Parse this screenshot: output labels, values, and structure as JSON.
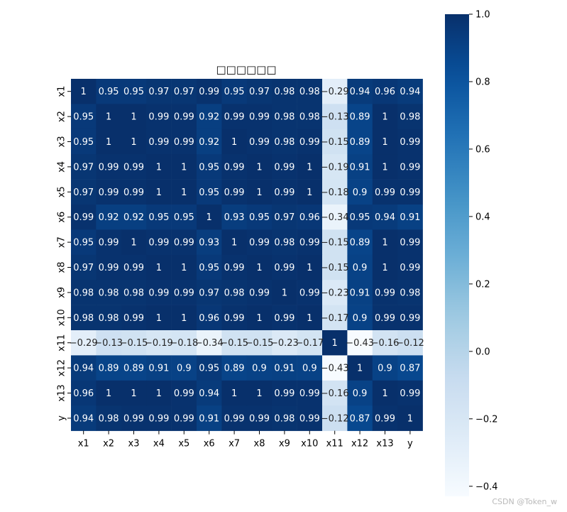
{
  "chart_data": {
    "type": "heatmap",
    "title": "□□□□□□",
    "colormap": "Blues",
    "vmin": -0.43,
    "vmax": 1.0,
    "row_labels": [
      "x1",
      "x2",
      "x3",
      "x4",
      "x5",
      "x6",
      "x7",
      "x8",
      "x9",
      "x10",
      "x11",
      "x12",
      "x13",
      "y"
    ],
    "col_labels": [
      "x1",
      "x2",
      "x3",
      "x4",
      "x5",
      "x6",
      "x7",
      "x8",
      "x9",
      "x10",
      "x11",
      "x12",
      "x13",
      "y"
    ],
    "values": [
      [
        1,
        0.95,
        0.95,
        0.97,
        0.97,
        0.99,
        0.95,
        0.97,
        0.98,
        0.98,
        -0.29,
        0.94,
        0.96,
        0.94
      ],
      [
        0.95,
        1,
        1,
        0.99,
        0.99,
        0.92,
        0.99,
        0.99,
        0.98,
        0.98,
        -0.13,
        0.89,
        1,
        0.98
      ],
      [
        0.95,
        1,
        1,
        0.99,
        0.99,
        0.92,
        1,
        0.99,
        0.98,
        0.99,
        -0.15,
        0.89,
        1,
        0.99
      ],
      [
        0.97,
        0.99,
        0.99,
        1,
        1,
        0.95,
        0.99,
        1,
        0.99,
        1,
        -0.19,
        0.91,
        1,
        0.99
      ],
      [
        0.97,
        0.99,
        0.99,
        1,
        1,
        0.95,
        0.99,
        1,
        0.99,
        1,
        -0.18,
        0.9,
        0.99,
        0.99
      ],
      [
        0.99,
        0.92,
        0.92,
        0.95,
        0.95,
        1,
        0.93,
        0.95,
        0.97,
        0.96,
        -0.34,
        0.95,
        0.94,
        0.91
      ],
      [
        0.95,
        0.99,
        1,
        0.99,
        0.99,
        0.93,
        1,
        0.99,
        0.98,
        0.99,
        -0.15,
        0.89,
        1,
        0.99
      ],
      [
        0.97,
        0.99,
        0.99,
        1,
        1,
        0.95,
        0.99,
        1,
        0.99,
        1,
        -0.15,
        0.9,
        1,
        0.99
      ],
      [
        0.98,
        0.98,
        0.98,
        0.99,
        0.99,
        0.97,
        0.98,
        0.99,
        1,
        0.99,
        -0.23,
        0.91,
        0.99,
        0.98
      ],
      [
        0.98,
        0.98,
        0.99,
        1,
        1,
        0.96,
        0.99,
        1,
        0.99,
        1,
        -0.17,
        0.9,
        0.99,
        0.99
      ],
      [
        -0.29,
        -0.13,
        -0.15,
        -0.19,
        -0.18,
        -0.34,
        -0.15,
        -0.15,
        -0.23,
        -0.17,
        1,
        -0.43,
        -0.16,
        -0.12
      ],
      [
        0.94,
        0.89,
        0.89,
        0.91,
        0.9,
        0.95,
        0.89,
        0.9,
        0.91,
        0.9,
        -0.43,
        1,
        0.9,
        0.87
      ],
      [
        0.96,
        1,
        1,
        1,
        0.99,
        0.94,
        1,
        1,
        0.99,
        0.99,
        -0.16,
        0.9,
        1,
        0.99
      ],
      [
        0.94,
        0.98,
        0.99,
        0.99,
        0.99,
        0.91,
        0.99,
        0.99,
        0.98,
        0.99,
        -0.12,
        0.87,
        0.99,
        1
      ]
    ],
    "colorbar": {
      "ticks": [
        1.0,
        0.8,
        0.6,
        0.4,
        0.2,
        0.0,
        -0.2,
        -0.4
      ],
      "tick_labels": [
        "1.0",
        "0.8",
        "0.6",
        "0.4",
        "0.2",
        "0.0",
        "−0.2",
        "−0.4"
      ]
    }
  },
  "watermark": "CSDN @Token_w"
}
